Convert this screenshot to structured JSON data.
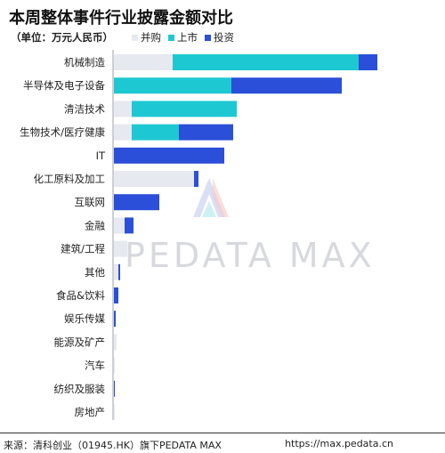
{
  "title": "本周整体事件行业披露金额对比",
  "unit_label": "（单位：万元人民币）",
  "legend": [
    {
      "name": "并购",
      "color": "#e6e9ef"
    },
    {
      "name": "上市",
      "color": "#1ec8d2"
    },
    {
      "name": "投资",
      "color": "#2b4fd8"
    }
  ],
  "chart_data": {
    "type": "bar",
    "orientation": "horizontal",
    "stacked": true,
    "categories": [
      "机械制造",
      "半导体及电子设备",
      "清洁技术",
      "生物技术/医疗健康",
      "IT",
      "化工原料及加工",
      "互联网",
      "金融",
      "建筑/工程",
      "其他",
      "食品&饮料",
      "娱乐传媒",
      "能源及矿产",
      "汽车",
      "纺织及服装",
      "房地产"
    ],
    "series": [
      {
        "name": "并购",
        "values": [
          66,
          0,
          20,
          20,
          0,
          90,
          0,
          12,
          15,
          5,
          0,
          0,
          3,
          1,
          0,
          1
        ]
      },
      {
        "name": "上市",
        "values": [
          209,
          132,
          118,
          53,
          0,
          0,
          0,
          0,
          0,
          0,
          0,
          0,
          0,
          0,
          0,
          0
        ]
      },
      {
        "name": "投资",
        "values": [
          21,
          124,
          0,
          61,
          124,
          5,
          51,
          10,
          0,
          2,
          5,
          2,
          0,
          0,
          1,
          0
        ]
      }
    ],
    "grid": false,
    "legend_position": "top"
  },
  "watermark": "PEDATA MAX",
  "footer": {
    "source": "来源：清科创业（01945.HK）旗下PEDATA MAX",
    "url": "https://max.pedata.cn"
  }
}
